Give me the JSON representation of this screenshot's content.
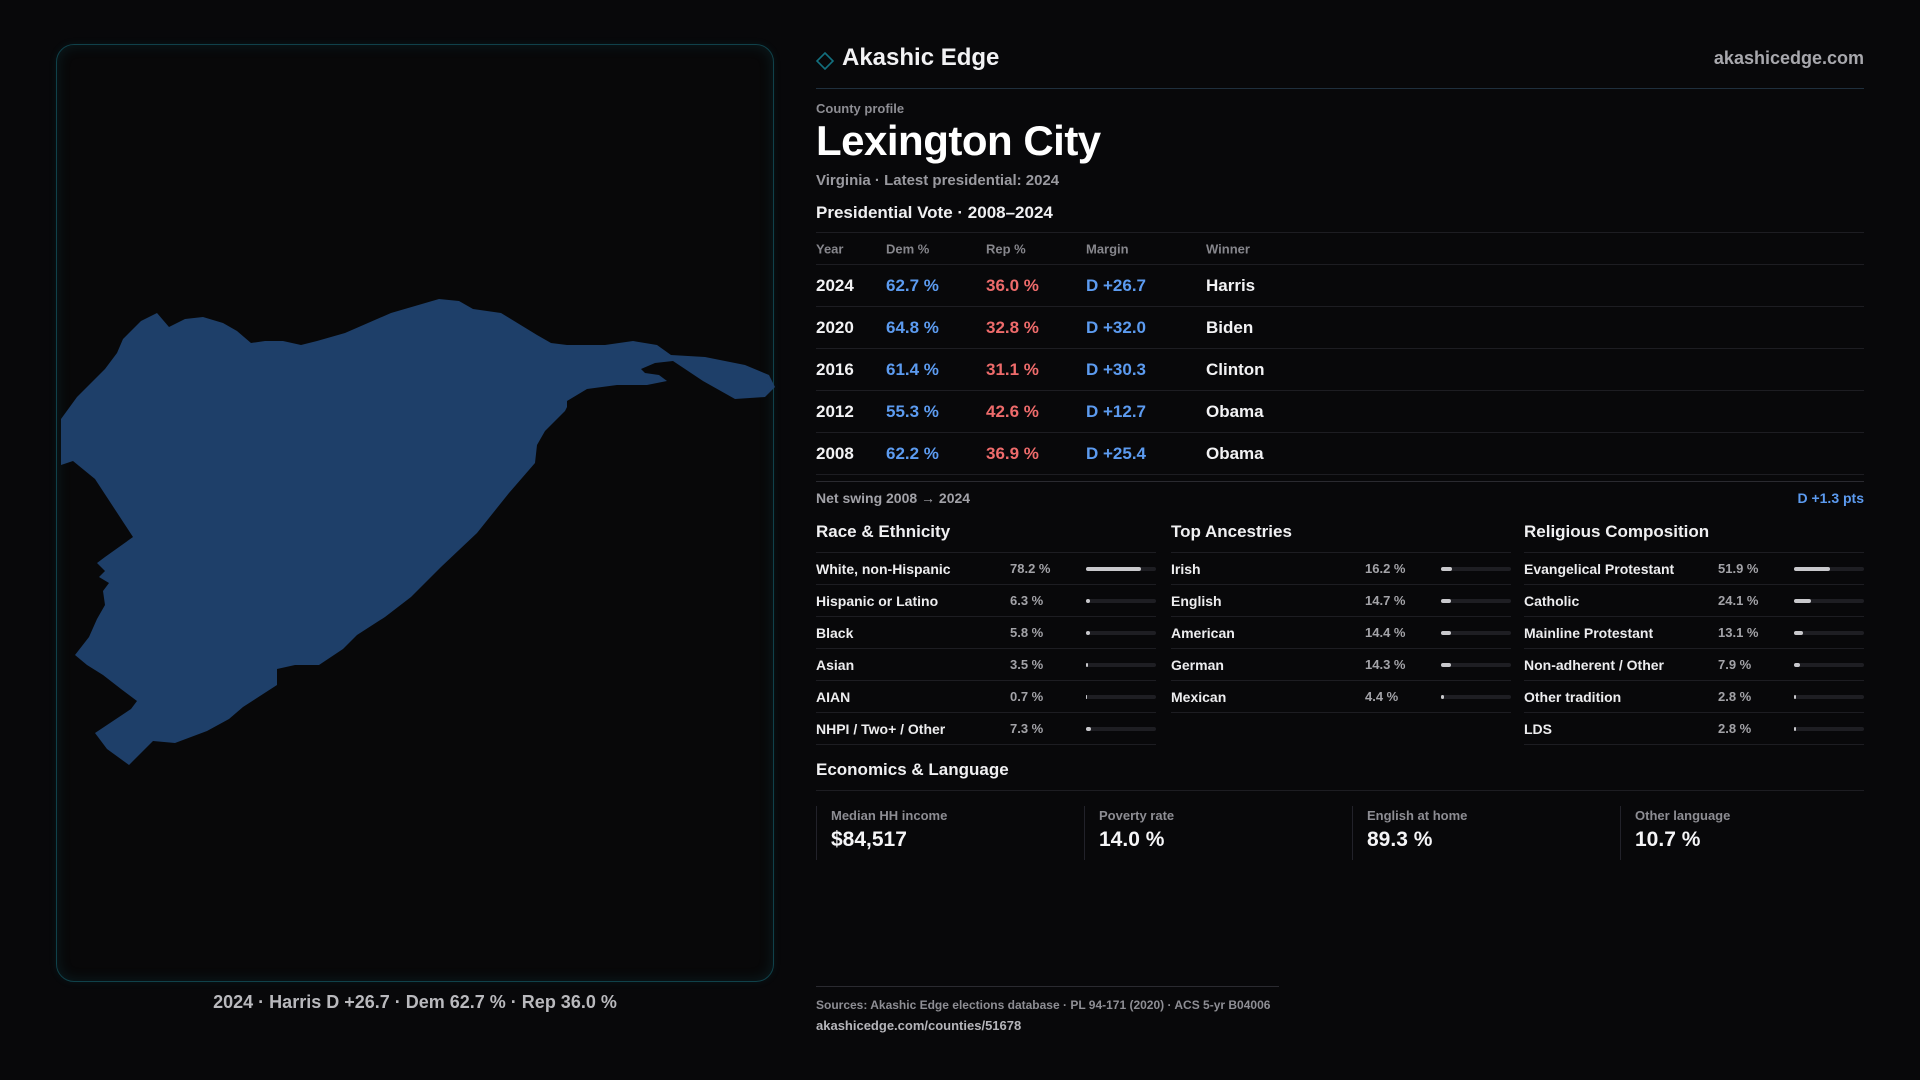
{
  "map": {
    "caption": "2024 · Harris D +26.7 · Dem 62.7 % · Rep 36.0 %",
    "fill_color": "#1e3f69"
  },
  "header": {
    "brand_name": "Akashic Edge",
    "brand_url": "akashicedge.com",
    "eyebrow": "County profile",
    "county_name": "Lexington City",
    "subtitle": "Virginia · Latest presidential: 2024"
  },
  "vote": {
    "title": "Presidential Vote · 2008–2024",
    "headers": {
      "year": "Year",
      "dem": "Dem %",
      "rep": "Rep %",
      "margin": "Margin",
      "winner": "Winner"
    },
    "rows": [
      {
        "year": "2024",
        "dem": "62.7 %",
        "rep": "36.0 %",
        "margin": "D +26.7",
        "winner": "Harris"
      },
      {
        "year": "2020",
        "dem": "64.8 %",
        "rep": "32.8 %",
        "margin": "D +32.0",
        "winner": "Biden"
      },
      {
        "year": "2016",
        "dem": "61.4 %",
        "rep": "31.1 %",
        "margin": "D +30.3",
        "winner": "Clinton"
      },
      {
        "year": "2012",
        "dem": "55.3 %",
        "rep": "42.6 %",
        "margin": "D +12.7",
        "winner": "Obama"
      },
      {
        "year": "2008",
        "dem": "62.2 %",
        "rep": "36.9 %",
        "margin": "D +25.4",
        "winner": "Obama"
      }
    ],
    "swing_label": "Net swing 2008 → 2024",
    "swing_value": "D +1.3 pts"
  },
  "race": {
    "title": "Race & Ethnicity",
    "items": [
      {
        "label": "White, non-Hispanic",
        "pct": "78.2 %",
        "value": 78.2
      },
      {
        "label": "Hispanic or Latino",
        "pct": "6.3 %",
        "value": 6.3
      },
      {
        "label": "Black",
        "pct": "5.8 %",
        "value": 5.8
      },
      {
        "label": "Asian",
        "pct": "3.5 %",
        "value": 3.5
      },
      {
        "label": "AIAN",
        "pct": "0.7 %",
        "value": 0.7
      },
      {
        "label": "NHPI / Two+ / Other",
        "pct": "7.3 %",
        "value": 7.3
      }
    ]
  },
  "ancestry": {
    "title": "Top Ancestries",
    "items": [
      {
        "label": "Irish",
        "pct": "16.2 %",
        "value": 16.2
      },
      {
        "label": "English",
        "pct": "14.7 %",
        "value": 14.7
      },
      {
        "label": "American",
        "pct": "14.4 %",
        "value": 14.4
      },
      {
        "label": "German",
        "pct": "14.3 %",
        "value": 14.3
      },
      {
        "label": "Mexican",
        "pct": "4.4 %",
        "value": 4.4
      }
    ]
  },
  "religion": {
    "title": "Religious Composition",
    "items": [
      {
        "label": "Evangelical Protestant",
        "pct": "51.9 %",
        "value": 51.9
      },
      {
        "label": "Catholic",
        "pct": "24.1 %",
        "value": 24.1
      },
      {
        "label": "Mainline Protestant",
        "pct": "13.1 %",
        "value": 13.1
      },
      {
        "label": "Non-adherent / Other",
        "pct": "7.9 %",
        "value": 7.9
      },
      {
        "label": "Other tradition",
        "pct": "2.8 %",
        "value": 2.8
      },
      {
        "label": "LDS",
        "pct": "2.8 %",
        "value": 2.8
      }
    ]
  },
  "economics": {
    "title": "Economics & Language",
    "stats": [
      {
        "label": "Median HH income",
        "value": "$84,517"
      },
      {
        "label": "Poverty rate",
        "value": "14.0 %"
      },
      {
        "label": "English at home",
        "value": "89.3 %"
      },
      {
        "label": "Other language",
        "value": "10.7 %"
      }
    ]
  },
  "footer": {
    "sources": "Sources: Akashic Edge elections database · PL 94-171 (2020) · ACS 5-yr B04006",
    "permalink": "akashicedge.com/counties/51678"
  },
  "colors": {
    "dem": "#5c9bf0",
    "rep": "#ee6b6b",
    "accent": "#13707f"
  }
}
